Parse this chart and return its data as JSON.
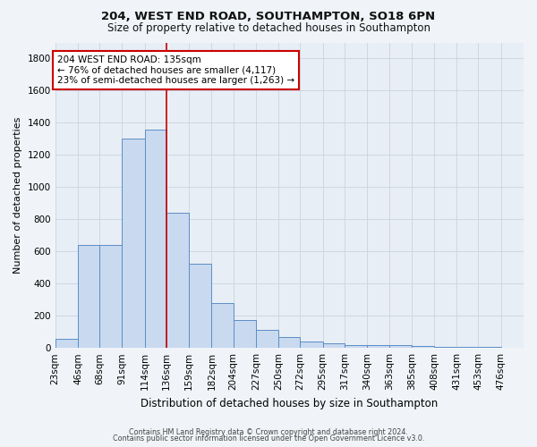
{
  "title1": "204, WEST END ROAD, SOUTHAMPTON, SO18 6PN",
  "title2": "Size of property relative to detached houses in Southampton",
  "xlabel": "Distribution of detached houses by size in Southampton",
  "ylabel": "Number of detached properties",
  "annotation_line1": "204 WEST END ROAD: 135sqm",
  "annotation_line2": "← 76% of detached houses are smaller (4,117)",
  "annotation_line3": "23% of semi-detached houses are larger (1,263) →",
  "footnote1": "Contains HM Land Registry data © Crown copyright and database right 2024.",
  "footnote2": "Contains public sector information licensed under the Open Government Licence v3.0.",
  "bin_labels": [
    "23sqm",
    "46sqm",
    "68sqm",
    "91sqm",
    "114sqm",
    "136sqm",
    "159sqm",
    "182sqm",
    "204sqm",
    "227sqm",
    "250sqm",
    "272sqm",
    "295sqm",
    "317sqm",
    "340sqm",
    "363sqm",
    "385sqm",
    "408sqm",
    "431sqm",
    "453sqm",
    "476sqm"
  ],
  "bar_edges": [
    23,
    46,
    68,
    91,
    114,
    136,
    159,
    182,
    204,
    227,
    250,
    272,
    295,
    317,
    340,
    363,
    385,
    408,
    431,
    453,
    476
  ],
  "bar_heights": [
    55,
    640,
    640,
    1300,
    1360,
    840,
    525,
    280,
    175,
    110,
    65,
    40,
    30,
    20,
    15,
    15,
    10,
    8,
    5,
    5
  ],
  "bar_color": "#c9d9ef",
  "bar_edge_color": "#5b8ec7",
  "vline_x": 136,
  "vline_color": "#cc0000",
  "annotation_box_color": "#cc0000",
  "annotation_bg": "#ffffff",
  "background_color": "#e8eef5",
  "fig_bg_color": "#f0f4f8",
  "ylim": [
    0,
    1900
  ],
  "yticks": [
    0,
    200,
    400,
    600,
    800,
    1000,
    1200,
    1400,
    1600,
    1800
  ],
  "grid_color": "#d0d8e4",
  "title1_fontsize": 9.5,
  "title2_fontsize": 8.5,
  "axis_label_fontsize": 8,
  "tick_fontsize": 7.5,
  "annotation_fontsize": 7.5,
  "footnote_fontsize": 5.8
}
